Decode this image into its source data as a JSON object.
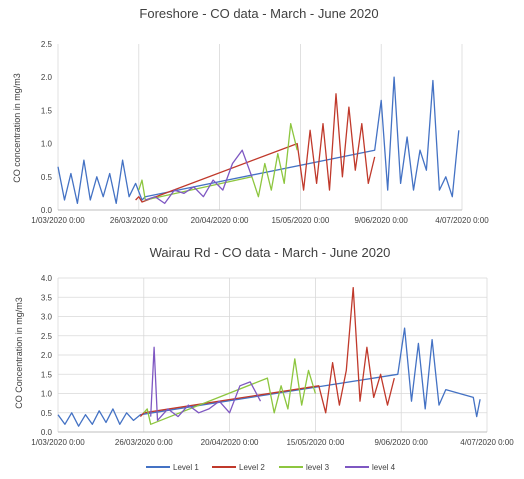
{
  "chart_data": [
    {
      "type": "line",
      "title": "Foreshore - CO data - March - June 2020",
      "ylabel": "CO concentration in mg/m3",
      "xlabel": "",
      "ylim": [
        0,
        2.5
      ],
      "yticks": [
        "0.0",
        "0.5",
        "1.0",
        "1.5",
        "2.0",
        "2.5"
      ],
      "xticks": [
        "1/03/2020 0:00",
        "26/03/2020 0:00",
        "20/04/2020 0:00",
        "15/05/2020 0:00",
        "9/06/2020 0:00",
        "4/07/2020 0:00"
      ],
      "xtick_dates": [
        "2020-03-01",
        "2020-03-26",
        "2020-04-20",
        "2020-05-15",
        "2020-06-09",
        "2020-07-04"
      ],
      "grid": "vertical",
      "series": [
        {
          "name": "Level 1",
          "color": "#4472C4",
          "x": [
            "2020-03-01",
            "2020-03-03",
            "2020-03-05",
            "2020-03-07",
            "2020-03-09",
            "2020-03-11",
            "2020-03-13",
            "2020-03-15",
            "2020-03-17",
            "2020-03-19",
            "2020-03-21",
            "2020-03-23",
            "2020-03-25",
            "2020-03-27",
            "2020-03-28",
            "2020-06-07",
            "2020-06-09",
            "2020-06-11",
            "2020-06-13",
            "2020-06-15",
            "2020-06-17",
            "2020-06-19",
            "2020-06-21",
            "2020-06-23",
            "2020-06-25",
            "2020-06-27",
            "2020-06-29",
            "2020-07-01",
            "2020-07-03"
          ],
          "y": [
            0.65,
            0.15,
            0.55,
            0.1,
            0.75,
            0.15,
            0.5,
            0.2,
            0.55,
            0.1,
            0.75,
            0.2,
            0.4,
            0.15,
            0.2,
            0.9,
            1.65,
            0.3,
            2.0,
            0.4,
            1.1,
            0.3,
            0.9,
            0.6,
            1.95,
            0.3,
            0.5,
            0.2,
            1.2
          ]
        },
        {
          "name": "Level 2",
          "color": "#C0392B",
          "x": [
            "2020-03-25",
            "2020-03-26",
            "2020-03-27",
            "2020-05-14",
            "2020-05-16",
            "2020-05-18",
            "2020-05-20",
            "2020-05-22",
            "2020-05-24",
            "2020-05-26",
            "2020-05-28",
            "2020-05-30",
            "2020-06-01",
            "2020-06-03",
            "2020-06-05",
            "2020-06-07"
          ],
          "y": [
            0.15,
            0.2,
            0.12,
            1.0,
            0.3,
            1.2,
            0.4,
            1.3,
            0.3,
            1.75,
            0.5,
            1.55,
            0.6,
            1.3,
            0.4,
            0.8
          ]
        },
        {
          "name": "level 3",
          "color": "#8DC63F",
          "x": [
            "2020-03-26",
            "2020-03-27",
            "2020-03-28",
            "2020-04-30",
            "2020-05-02",
            "2020-05-04",
            "2020-05-06",
            "2020-05-08",
            "2020-05-10",
            "2020-05-12",
            "2020-05-14"
          ],
          "y": [
            0.3,
            0.45,
            0.15,
            0.5,
            0.2,
            0.7,
            0.3,
            0.85,
            0.4,
            1.3,
            0.9
          ]
        },
        {
          "name": "level 4",
          "color": "#7E57C2",
          "x": [
            "2020-03-28",
            "2020-03-31",
            "2020-04-03",
            "2020-04-06",
            "2020-04-09",
            "2020-04-12",
            "2020-04-15",
            "2020-04-18",
            "2020-04-21",
            "2020-04-24",
            "2020-04-27",
            "2020-04-30"
          ],
          "y": [
            0.15,
            0.2,
            0.1,
            0.3,
            0.25,
            0.35,
            0.2,
            0.45,
            0.3,
            0.7,
            0.9,
            0.5
          ]
        }
      ]
    },
    {
      "type": "line",
      "title": "Wairau Rd - CO data - March - June 2020",
      "ylabel": "CO Concentration in mg/m3",
      "xlabel": "",
      "ylim": [
        0,
        4.0
      ],
      "yticks": [
        "0.0",
        "0.5",
        "1.0",
        "1.5",
        "2.0",
        "2.5",
        "3.0",
        "3.5",
        "4.0"
      ],
      "xticks": [
        "1/03/2020 0:00",
        "26/03/2020 0:00",
        "20/04/2020 0:00",
        "15/05/2020 0:00",
        "9/06/2020 0:00",
        "4/07/2020 0:00"
      ],
      "xtick_dates": [
        "2020-03-01",
        "2020-03-26",
        "2020-04-20",
        "2020-05-15",
        "2020-06-09",
        "2020-07-04"
      ],
      "grid": "both",
      "series": [
        {
          "name": "Level 1",
          "color": "#4472C4",
          "x": [
            "2020-03-01",
            "2020-03-03",
            "2020-03-05",
            "2020-03-07",
            "2020-03-09",
            "2020-03-11",
            "2020-03-13",
            "2020-03-15",
            "2020-03-17",
            "2020-03-19",
            "2020-03-21",
            "2020-03-23",
            "2020-03-25",
            "2020-06-08",
            "2020-06-10",
            "2020-06-12",
            "2020-06-14",
            "2020-06-16",
            "2020-06-18",
            "2020-06-20",
            "2020-06-22",
            "2020-06-30",
            "2020-07-01",
            "2020-07-02"
          ],
          "y": [
            0.45,
            0.2,
            0.5,
            0.15,
            0.45,
            0.2,
            0.55,
            0.25,
            0.6,
            0.2,
            0.5,
            0.3,
            0.45,
            1.5,
            2.7,
            0.8,
            2.3,
            0.6,
            2.4,
            0.7,
            1.1,
            0.9,
            0.4,
            0.85
          ]
        },
        {
          "name": "Level 2",
          "color": "#C0392B",
          "x": [
            "2020-03-25",
            "2020-03-26",
            "2020-05-16",
            "2020-05-18",
            "2020-05-20",
            "2020-05-22",
            "2020-05-24",
            "2020-05-26",
            "2020-05-28",
            "2020-05-30",
            "2020-06-01",
            "2020-06-03",
            "2020-06-05",
            "2020-06-07"
          ],
          "y": [
            0.4,
            0.5,
            1.2,
            0.5,
            1.8,
            0.7,
            1.6,
            3.75,
            0.8,
            2.2,
            0.9,
            1.5,
            0.7,
            1.4
          ]
        },
        {
          "name": "level 3",
          "color": "#8DC63F",
          "x": [
            "2020-03-26",
            "2020-03-27",
            "2020-03-28",
            "2020-05-01",
            "2020-05-03",
            "2020-05-05",
            "2020-05-07",
            "2020-05-09",
            "2020-05-11",
            "2020-05-13",
            "2020-05-15"
          ],
          "y": [
            0.5,
            0.6,
            0.2,
            1.4,
            0.5,
            1.2,
            0.6,
            1.9,
            0.7,
            1.6,
            1.0
          ]
        },
        {
          "name": "level 4",
          "color": "#7E57C2",
          "x": [
            "2020-03-28",
            "2020-03-29",
            "2020-03-30",
            "2020-04-02",
            "2020-04-05",
            "2020-04-08",
            "2020-04-11",
            "2020-04-14",
            "2020-04-17",
            "2020-04-20",
            "2020-04-23",
            "2020-04-26",
            "2020-04-29"
          ],
          "y": [
            0.4,
            2.2,
            0.3,
            0.6,
            0.4,
            0.7,
            0.5,
            0.6,
            0.8,
            0.5,
            1.2,
            1.3,
            0.8
          ]
        }
      ]
    }
  ],
  "legend": [
    {
      "label": "Level 1",
      "color": "#4472C4"
    },
    {
      "label": "Level 2",
      "color": "#C0392B"
    },
    {
      "label": "level 3",
      "color": "#8DC63F"
    },
    {
      "label": "level 4",
      "color": "#7E57C2"
    }
  ]
}
